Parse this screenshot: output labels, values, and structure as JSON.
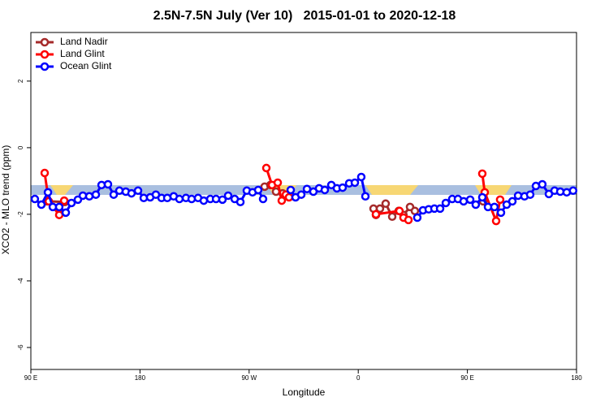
{
  "chart_data": {
    "type": "line",
    "title": "2.5N-7.5N July (Ver 10)   2015-01-01 to 2020-12-18",
    "x_label": "Longitude",
    "y_label": "XCO2 - MLO trend (ppm)",
    "xlim": [
      90,
      540
    ],
    "ylim": [
      -6.66,
      3.46
    ],
    "xticks": [
      {
        "value": 90,
        "label": "90 E"
      },
      180,
      {
        "value": 270,
        "label": "90 W"
      },
      {
        "value": 360,
        "label": "0"
      },
      {
        "value": 450,
        "label": "90 E"
      },
      {
        "value": 540,
        "label": "180"
      }
    ],
    "yticks": [
      -6,
      -4,
      -2,
      0,
      2
    ],
    "legend": "top-left",
    "series": [
      {
        "name": "Land Nadir",
        "color": "#a52a2a",
        "x": [
          103.4,
          118.1,
          null,
          282.8,
          287.5,
          292.2,
          297.6,
          null,
          372.6,
          374.6,
          377.9,
          382.6,
          388.0,
          393.3,
          397.3,
          402.7,
          406.7,
          null,
          463.0
        ],
        "values": [
          -1.61,
          -1.63,
          null,
          -1.17,
          -1.12,
          -1.32,
          -1.37,
          null,
          -1.83,
          -2.02,
          -1.83,
          -1.68,
          -2.07,
          -1.9,
          -2.02,
          -1.78,
          -1.9,
          null,
          -1.61
        ]
      },
      {
        "name": "Land Glint",
        "color": "#ff0000",
        "x": [
          101.4,
          104.8,
          113.4,
          117.5,
          null,
          284.2,
          288.9,
          293.6,
          296.9,
          300.3,
          302.9,
          null,
          374.6,
          394.0,
          397.3,
          401.4,
          null,
          462.3,
          464.3,
          473.7,
          477.0
        ],
        "values": [
          -0.76,
          -1.61,
          -2.02,
          -1.59,
          null,
          -0.61,
          -1.12,
          -1.05,
          -1.59,
          -1.41,
          -1.49,
          null,
          -2.0,
          -1.9,
          -2.1,
          -2.17,
          null,
          -0.78,
          -1.34,
          -2.2,
          -1.56
        ]
      },
      {
        "name": "Ocean Glint",
        "color": "#0000ff",
        "x": [
          93.3,
          98.7,
          104.1,
          108.1,
          113.4,
          118.8,
          123.5,
          128.8,
          132.9,
          138.2,
          143.6,
          148.3,
          153.6,
          158.3,
          163.0,
          168.3,
          173.0,
          178.4,
          183.1,
          188.4,
          193.1,
          197.8,
          202.5,
          207.8,
          212.5,
          217.9,
          222.6,
          227.9,
          232.6,
          238.0,
          242.7,
          248.0,
          252.7,
          258.1,
          262.8,
          268.1,
          272.8,
          277.5,
          281.5,
          null,
          304.3,
          308.3,
          313.0,
          317.7,
          323.0,
          327.7,
          332.4,
          337.8,
          342.4,
          347.1,
          352.5,
          357.2,
          362.5,
          365.9,
          null,
          408.7,
          413.4,
          418.1,
          422.8,
          427.5,
          432.2,
          437.5,
          442.2,
          446.9,
          452.3,
          456.9,
          462.3,
          467.0,
          472.3,
          477.7,
          482.4,
          487.1,
          491.8,
          497.1,
          501.8,
          506.5,
          511.8,
          517.2,
          521.9,
          526.6,
          531.9,
          537.2
        ],
        "values": [
          -1.54,
          -1.71,
          -1.34,
          -1.78,
          -1.78,
          -1.95,
          -1.66,
          -1.56,
          -1.44,
          -1.46,
          -1.41,
          -1.12,
          -1.1,
          -1.41,
          -1.29,
          -1.32,
          -1.37,
          -1.29,
          -1.51,
          -1.49,
          -1.41,
          -1.51,
          -1.51,
          -1.46,
          -1.54,
          -1.51,
          -1.54,
          -1.51,
          -1.59,
          -1.54,
          -1.54,
          -1.56,
          -1.44,
          -1.54,
          -1.63,
          -1.29,
          -1.34,
          -1.27,
          -1.54,
          null,
          -1.27,
          -1.49,
          -1.41,
          -1.24,
          -1.32,
          -1.22,
          -1.27,
          -1.12,
          -1.22,
          -1.2,
          -1.07,
          -1.05,
          -0.88,
          -1.46,
          null,
          -2.1,
          -1.88,
          -1.85,
          -1.83,
          -1.83,
          -1.66,
          -1.54,
          -1.54,
          -1.61,
          -1.56,
          -1.71,
          -1.49,
          -1.78,
          -1.78,
          -1.95,
          -1.71,
          -1.61,
          -1.44,
          -1.46,
          -1.41,
          -1.15,
          -1.1,
          -1.39,
          -1.29,
          -1.32,
          -1.34,
          -1.29
        ]
      }
    ]
  }
}
